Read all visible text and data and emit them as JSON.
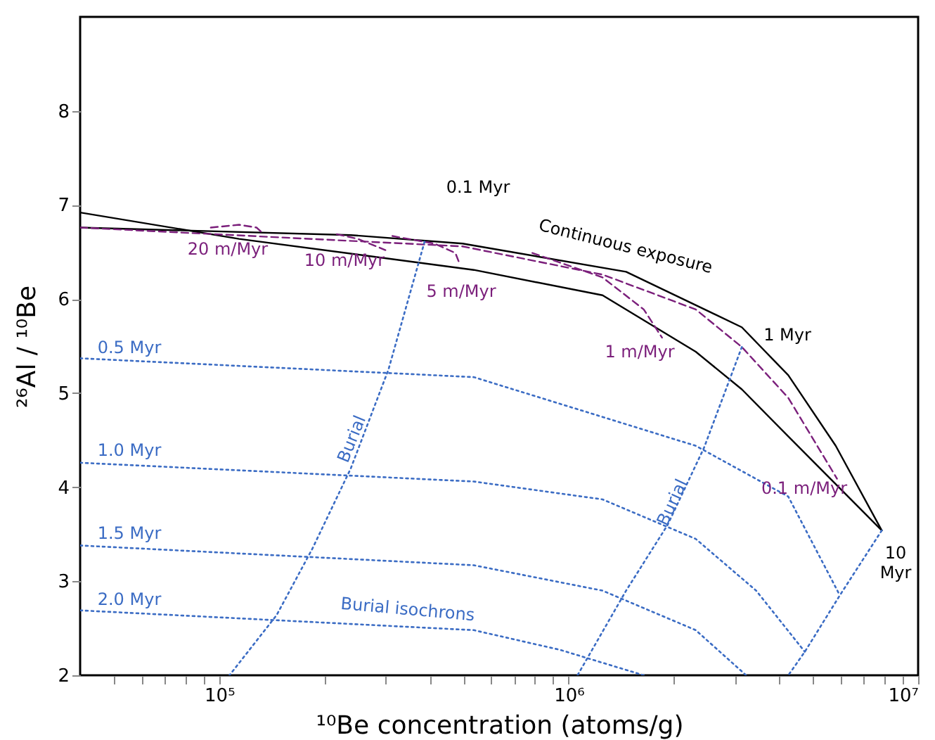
{
  "chart_data": {
    "type": "line",
    "xlabel": "¹⁰Be concentration (atoms/g)",
    "ylabel": "²⁶Al / ¹⁰Be",
    "log": "x",
    "grid": false,
    "xlim": [
      40000,
      10000000
    ],
    "ylim": [
      2,
      9
    ],
    "xticks": [
      {
        "value": 50000,
        "label": null
      },
      {
        "value": 60000,
        "label": null
      },
      {
        "value": 70000,
        "label": null
      },
      {
        "value": 80000,
        "label": null
      },
      {
        "value": 90000,
        "label": null
      },
      {
        "value": 100000,
        "label": "10⁵"
      },
      {
        "value": 200000,
        "label": null
      },
      {
        "value": 300000,
        "label": null
      },
      {
        "value": 400000,
        "label": null
      },
      {
        "value": 500000,
        "label": null
      },
      {
        "value": 600000,
        "label": null
      },
      {
        "value": 700000,
        "label": null
      },
      {
        "value": 800000,
        "label": null
      },
      {
        "value": 900000,
        "label": null
      },
      {
        "value": 1000000,
        "label": "10⁶"
      },
      {
        "value": 2000000,
        "label": null
      },
      {
        "value": 3000000,
        "label": null
      },
      {
        "value": 4000000,
        "label": null
      },
      {
        "value": 5000000,
        "label": null
      },
      {
        "value": 6000000,
        "label": null
      },
      {
        "value": 7000000,
        "label": null
      },
      {
        "value": 8000000,
        "label": null
      },
      {
        "value": 9000000,
        "label": null
      },
      {
        "value": 10000000,
        "label": "10⁷"
      }
    ],
    "yticks": [
      2,
      3,
      4,
      5,
      6,
      7,
      8
    ],
    "series": [
      {
        "color": "#000000",
        "line_style": "solid",
        "x": [
          40000,
          238000,
          497000,
          1460000,
          3130000,
          4250000,
          5810000,
          7870000
        ],
        "values": [
          6.76,
          6.68,
          6.59,
          6.29,
          5.7,
          5.19,
          4.44,
          3.54
        ]
      },
      {
        "color": "#000000",
        "line_style": "solid",
        "x": [
          40000,
          114000,
          535000,
          1250000,
          2310000,
          3130000,
          4250000,
          7870000
        ],
        "values": [
          6.92,
          6.64,
          6.31,
          6.04,
          5.44,
          5.04,
          4.54,
          3.54
        ]
      },
      {
        "color": "#7b1f7b",
        "line_style": "dashed",
        "x": [
          40000,
          497000,
          1250000,
          2310000,
          3130000,
          4250000,
          5860000
        ],
        "values": [
          6.76,
          6.56,
          6.26,
          5.89,
          5.49,
          4.95,
          4.09
        ]
      },
      {
        "color": "#7b1f7b",
        "line_style": "dashed",
        "x": [
          94600,
          114000,
          128000,
          134000
        ],
        "values": [
          6.76,
          6.79,
          6.76,
          6.69
        ]
      },
      {
        "color": "#7b1f7b",
        "line_style": "dashed",
        "x": [
          217000,
          249000,
          286000,
          299000
        ],
        "values": [
          6.69,
          6.64,
          6.55,
          6.52
        ]
      },
      {
        "color": "#7b1f7b",
        "line_style": "dashed",
        "x": [
          313000,
          413000,
          474000,
          488000
        ],
        "values": [
          6.67,
          6.59,
          6.49,
          6.37
        ]
      },
      {
        "color": "#7b1f7b",
        "line_style": "dashed",
        "x": [
          787000,
          1250000,
          1640000,
          1850000
        ],
        "values": [
          6.49,
          6.23,
          5.89,
          5.59
        ]
      },
      {
        "color": "#3b6cc4",
        "line_style": "dotted",
        "x": [
          40000,
          535000,
          2310000,
          4250000,
          5970000
        ],
        "values": [
          5.37,
          5.17,
          4.44,
          3.9,
          2.85
        ]
      },
      {
        "color": "#3b6cc4",
        "line_style": "dotted",
        "x": [
          40000,
          535000,
          1250000,
          2310000,
          3440000,
          4740000
        ],
        "values": [
          4.26,
          4.06,
          3.87,
          3.45,
          2.9,
          2.25
        ]
      },
      {
        "color": "#3b6cc4",
        "line_style": "dotted",
        "x": [
          40000,
          535000,
          1250000,
          2310000,
          3220000
        ],
        "values": [
          3.38,
          3.17,
          2.9,
          2.48,
          2.0
        ]
      },
      {
        "color": "#3b6cc4",
        "line_style": "dotted",
        "x": [
          40000,
          535000,
          946000,
          1640000
        ],
        "values": [
          2.69,
          2.48,
          2.27,
          2.0
        ]
      },
      {
        "color": "#3b6cc4",
        "line_style": "dotted",
        "x": [
          387000,
          305000,
          238000,
          185000,
          146000,
          107000
        ],
        "values": [
          6.61,
          5.25,
          4.2,
          3.35,
          2.64,
          2.0
        ]
      },
      {
        "color": "#3b6cc4",
        "line_style": "dotted",
        "x": [
          3130000,
          2440000,
          1920000,
          1460000,
          1060000
        ],
        "values": [
          5.49,
          4.42,
          3.6,
          2.9,
          2.0
        ]
      },
      {
        "color": "#3b6cc4",
        "line_style": "dotted",
        "x": [
          7870000,
          5970000,
          4740000,
          4250000
        ],
        "values": [
          3.54,
          2.85,
          2.25,
          2.0
        ]
      }
    ],
    "annotations": [
      "0.1 Myr",
      "Continuous exposure",
      "1 Myr",
      "10 Myr",
      "20 m/Myr",
      "10 m/Myr",
      "5 m/Myr",
      "1 m/Myr",
      "0.1 m/Myr",
      "0.5 Myr",
      "1.0 Myr",
      "1.5 Myr",
      "2.0 Myr",
      "Burial isochrons",
      "Burial",
      "Burial"
    ]
  }
}
